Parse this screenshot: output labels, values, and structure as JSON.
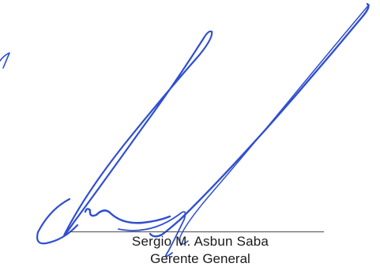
{
  "signature": {
    "ink_color": "#2f4fd1",
    "signer_name": "Sergio M. Asbun Saba",
    "signer_title": "Gerente General"
  }
}
